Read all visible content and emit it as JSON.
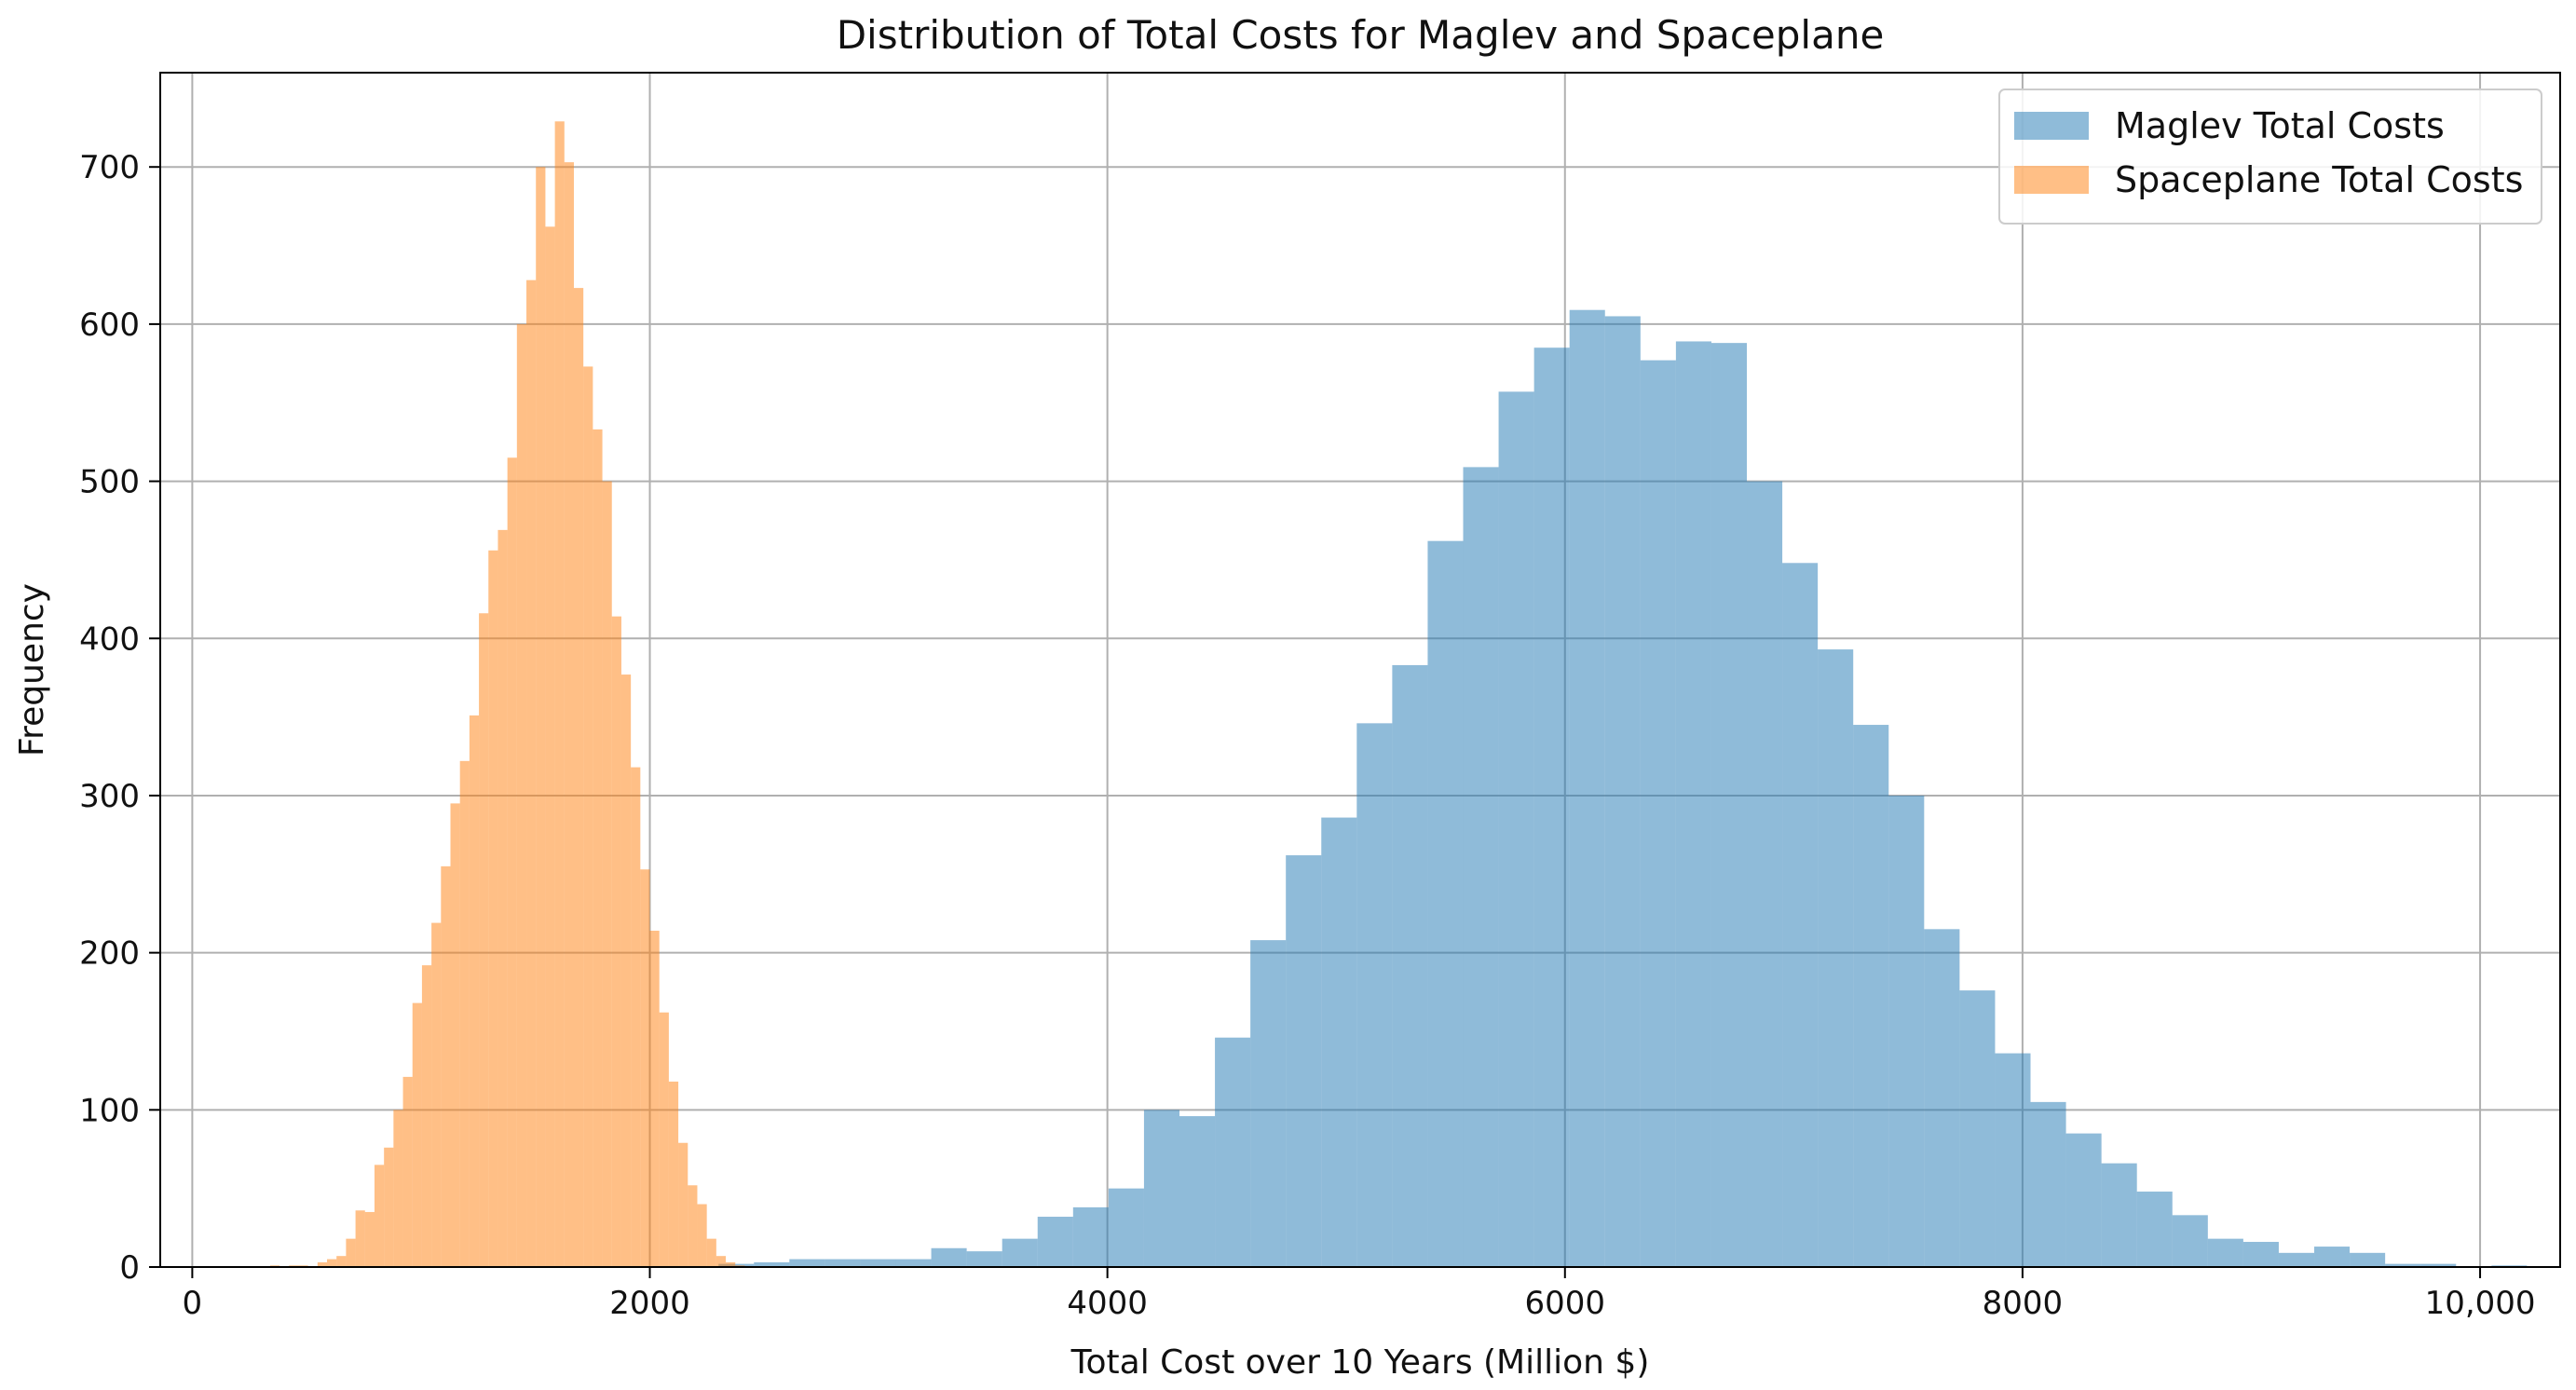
{
  "chart_data": {
    "type": "histogram",
    "title": "Distribution of Total Costs for Maglev and Spaceplane",
    "xlabel": "Total Cost over 10 Years (Million $)",
    "ylabel": "Frequency",
    "xlim": [
      -140,
      10350
    ],
    "ylim": [
      0,
      760
    ],
    "xticks": [
      0,
      2000,
      4000,
      6000,
      8000,
      10000
    ],
    "xtick_labels": [
      "0",
      "2000",
      "4000",
      "6000",
      "8000",
      "10,000"
    ],
    "yticks": [
      0,
      100,
      200,
      300,
      400,
      500,
      600,
      700
    ],
    "ytick_labels": [
      "0",
      "100",
      "200",
      "300",
      "400",
      "500",
      "600",
      "700"
    ],
    "grid": true,
    "legend_position": "top-right",
    "series": [
      {
        "name": "Maglev Total Costs",
        "color": "#1f77b4",
        "opacity": 0.5,
        "bin_start": 2300,
        "bin_width": 155,
        "counts": [
          2,
          3,
          5,
          5,
          5,
          5,
          12,
          10,
          18,
          32,
          38,
          50,
          100,
          96,
          146,
          208,
          262,
          286,
          346,
          383,
          462,
          509,
          557,
          585,
          609,
          605,
          577,
          589,
          588,
          500,
          448,
          393,
          345,
          300,
          215,
          176,
          136,
          105,
          85,
          66,
          48,
          33,
          18,
          16,
          9,
          13,
          9,
          2,
          2,
          0,
          1
        ]
      },
      {
        "name": "Spaceplane Total Costs",
        "color": "#ff7f0e",
        "opacity": 0.5,
        "bin_start": 340,
        "bin_width": 41.5,
        "counts": [
          1,
          0,
          1,
          1,
          0,
          3,
          5,
          7,
          18,
          36,
          35,
          65,
          76,
          100,
          121,
          168,
          192,
          219,
          255,
          295,
          322,
          351,
          416,
          456,
          469,
          515,
          600,
          628,
          700,
          662,
          729,
          703,
          623,
          573,
          533,
          500,
          414,
          377,
          318,
          253,
          214,
          162,
          118,
          79,
          52,
          40,
          18,
          7,
          3,
          1
        ]
      }
    ]
  }
}
